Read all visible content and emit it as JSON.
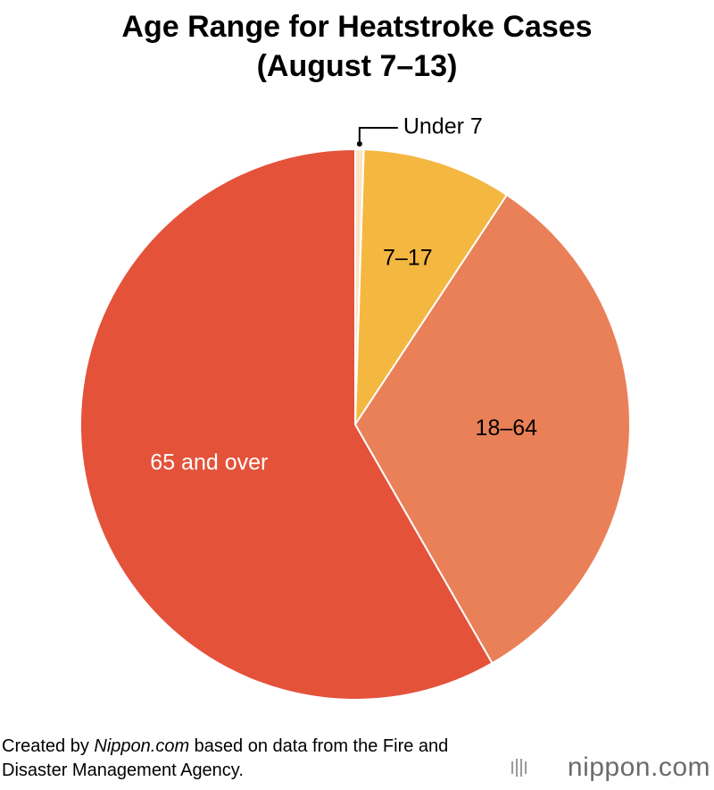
{
  "chart_data": {
    "type": "pie",
    "title": "Age Range for Heatstroke Cases (August 7–13)",
    "categories": [
      "Under 7",
      "7–17",
      "18–64",
      "65 and over"
    ],
    "values": [
      0.5,
      8.8,
      32.4,
      58.3
    ],
    "colors": [
      "#fbe3c4",
      "#f4b740",
      "#e98057",
      "#e4523a"
    ],
    "label_colors": [
      "#000000",
      "#000000",
      "#000000",
      "#ffffff"
    ]
  },
  "source": [
    "Created by ",
    "Nippon.com",
    " based on data from the Fire and Disaster Management Agency."
  ],
  "logo": "nippon.com"
}
